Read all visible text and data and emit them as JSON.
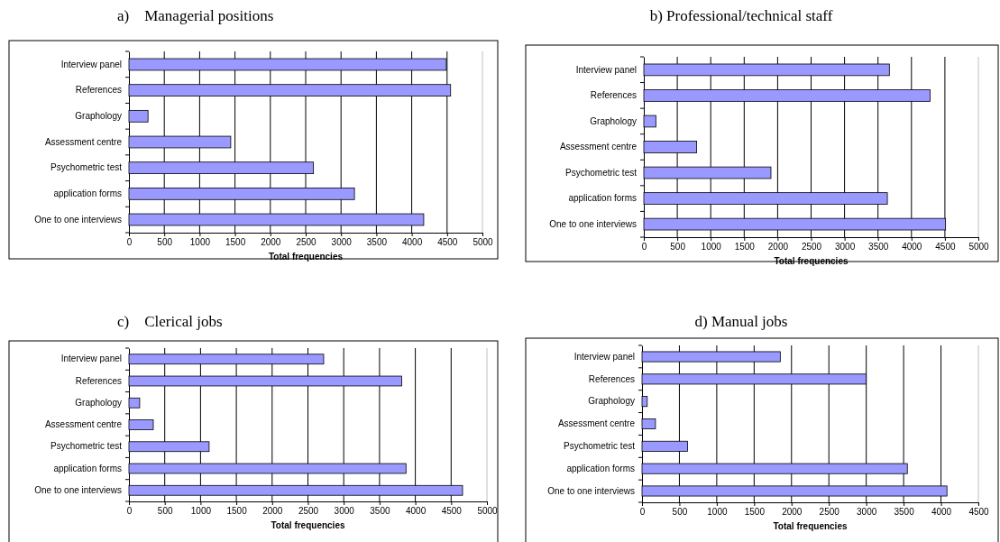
{
  "chart_data": [
    {
      "type": "bar",
      "orientation": "horizontal",
      "title": "a)    Managerial positions",
      "xlabel": "Total frequencies",
      "categories": [
        "Interview panel",
        "References",
        "Graphology",
        "Assessment centre",
        "Psychometric test",
        "application forms",
        "One to one interviews"
      ],
      "values": [
        4490,
        4550,
        270,
        1440,
        2610,
        3190,
        4170
      ],
      "color": "#9999ff",
      "xlim": [
        0,
        5000
      ],
      "xticks": [
        0,
        500,
        1000,
        1500,
        2000,
        2500,
        3000,
        3500,
        4000,
        4500,
        5000
      ],
      "grid": "x"
    },
    {
      "type": "bar",
      "orientation": "horizontal",
      "title": "b) Professional/technical staff",
      "xlabel": "Total frequencies",
      "categories": [
        "Interview panel",
        "References",
        "Graphology",
        "Assessment centre",
        "Psychometric test",
        "application forms",
        "One to one interviews"
      ],
      "values": [
        3670,
        4280,
        180,
        790,
        1900,
        3640,
        4510
      ],
      "color": "#9999ff",
      "xlim": [
        0,
        5000
      ],
      "xticks": [
        0,
        500,
        1000,
        1500,
        2000,
        2500,
        3000,
        3500,
        4000,
        4500,
        5000
      ],
      "grid": "x"
    },
    {
      "type": "bar",
      "orientation": "horizontal",
      "title": "c)    Clerical jobs",
      "xlabel": "Total frequencies",
      "categories": [
        "Interview panel",
        "References",
        "Graphology",
        "Assessment centre",
        "Psychometric test",
        "application forms",
        "One to one interviews"
      ],
      "values": [
        2720,
        3810,
        150,
        340,
        1120,
        3870,
        4660
      ],
      "color": "#9999ff",
      "xlim": [
        0,
        5000
      ],
      "xticks": [
        0,
        500,
        1000,
        1500,
        2000,
        2500,
        3000,
        3500,
        4000,
        4500,
        5000
      ],
      "grid": "x"
    },
    {
      "type": "bar",
      "orientation": "horizontal",
      "title": "d) Manual jobs",
      "xlabel": "Total frequencies",
      "categories": [
        "Interview panel",
        "References",
        "Graphology",
        "Assessment centre",
        "Psychometric test",
        "application forms",
        "One to one interviews"
      ],
      "values": [
        1850,
        3000,
        70,
        180,
        610,
        3550,
        4080
      ],
      "color": "#9999ff",
      "xlim": [
        0,
        4500
      ],
      "xticks": [
        0,
        500,
        1000,
        1500,
        2000,
        2500,
        3000,
        3500,
        4000,
        4500
      ],
      "grid": "x"
    }
  ]
}
